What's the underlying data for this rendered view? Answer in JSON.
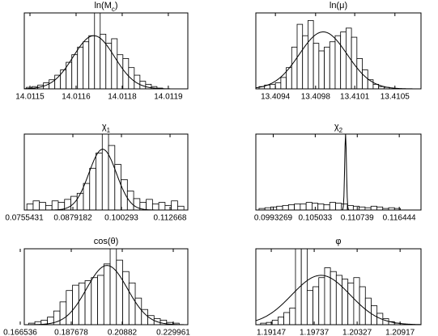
{
  "chart_data": [
    {
      "type": "histogram",
      "title": [
        "ln(M",
        "c",
        ")"
      ],
      "xlim": [
        14.011484,
        14.011945
      ],
      "ylim": [
        0,
        100
      ],
      "xticks": [
        {
          "value": 14.0115,
          "label": "14.0115"
        },
        {
          "value": 14.01163,
          "label": "14.0116"
        },
        {
          "value": 14.01176,
          "label": "14.0118"
        },
        {
          "value": 14.01189,
          "label": "14.0119"
        }
      ],
      "bins": [
        14.01149,
        14.011506,
        14.011522,
        14.011538,
        14.011554,
        14.01157,
        14.011586,
        14.011602,
        14.011618,
        14.011634,
        14.01165,
        14.011666,
        14.011682,
        14.011698,
        14.011714,
        14.01173,
        14.011746,
        14.011762,
        14.011778,
        14.011794,
        14.01181,
        14.011826,
        14.011842,
        14.011858,
        14.011874
      ],
      "counts": [
        2,
        3,
        5,
        8,
        12,
        18,
        25,
        35,
        45,
        55,
        62,
        70,
        100,
        72,
        60,
        66,
        45,
        40,
        28,
        18,
        10,
        6,
        3,
        1
      ],
      "fit": {
        "mean": 14.01168,
        "sigma": 5.8e-05,
        "peak": 70
      }
    },
    {
      "type": "histogram",
      "title": [
        "ln(μ)"
      ],
      "xlim": [
        13.40922,
        13.41074
      ],
      "ylim": [
        0,
        100
      ],
      "xticks": [
        13.4094,
        {
          "value": 13.40977,
          "label": "13.4098"
        },
        {
          "value": 13.41013,
          "label": "13.4101"
        },
        13.4105
      ],
      "bins": [
        13.40925,
        13.4093,
        13.40935,
        13.4094,
        13.40945,
        13.4095,
        13.40955,
        13.4096,
        13.40965,
        13.4097,
        13.40975,
        13.4098,
        13.40985,
        13.4099,
        13.40995,
        13.41,
        13.41005,
        13.4101,
        13.41015,
        13.4102,
        13.41025,
        13.4103,
        13.41035,
        13.4104,
        13.41045
      ],
      "counts": [
        3,
        5,
        6,
        8,
        15,
        28,
        55,
        85,
        70,
        90,
        60,
        50,
        55,
        62,
        70,
        75,
        80,
        68,
        40,
        25,
        12,
        6,
        3,
        2
      ],
      "fit": {
        "mean": 13.40984,
        "sigma": 0.00022,
        "peak": 75
      }
    },
    {
      "type": "histogram",
      "title": [
        "χ",
        "1"
      ],
      "xlim": [
        0.0755431,
        0.1172
      ],
      "ylim": [
        0,
        100
      ],
      "xticks": [
        0.0755431,
        0.0879182,
        0.100293,
        0.112668
      ],
      "bins": [
        0.0762,
        0.0778,
        0.0794,
        0.081,
        0.0826,
        0.0842,
        0.0858,
        0.0874,
        0.089,
        0.0906,
        0.0922,
        0.0938,
        0.0954,
        0.097,
        0.0986,
        0.1002,
        0.1018,
        0.1034,
        0.105,
        0.1066,
        0.1082,
        0.1098,
        0.1114,
        0.113,
        0.1146,
        0.1162
      ],
      "counts": [
        8,
        12,
        10,
        6,
        12,
        10,
        14,
        18,
        22,
        35,
        55,
        75,
        100,
        85,
        60,
        40,
        25,
        15,
        10,
        14,
        8,
        10,
        6,
        12,
        5
      ],
      "fit": {
        "mean": 0.0955,
        "sigma": 0.0035,
        "peak": 80
      }
    },
    {
      "type": "histogram",
      "title": [
        "χ",
        "2"
      ],
      "xlim": [
        0.096966,
        0.119396
      ],
      "ylim": [
        0,
        100
      ],
      "xticks": [
        0.0993269,
        0.105033,
        0.110739,
        0.116444
      ],
      "bins": [
        0.0974,
        0.0982,
        0.099,
        0.0998,
        0.1006,
        0.1014,
        0.1022,
        0.103,
        0.1038,
        0.1046,
        0.1054,
        0.1062,
        0.107,
        0.1078,
        0.1086,
        0.1094,
        0.1102,
        0.111,
        0.1118,
        0.1126,
        0.1134,
        0.1142,
        0.115,
        0.1158,
        0.1166
      ],
      "counts": [
        2,
        3,
        4,
        5,
        6,
        7,
        8,
        8,
        10,
        9,
        8,
        7,
        10,
        9,
        8,
        6,
        5,
        4,
        3,
        5,
        4,
        2,
        3,
        2
      ],
      "fit": {
        "mean": 0.10915,
        "sigma": 0.00012,
        "peak": 100
      }
    },
    {
      "type": "histogram",
      "title": [
        "cos(θ)"
      ],
      "xlim": [
        0.168214,
        0.236002
      ],
      "ylim": [
        0,
        100
      ],
      "xticks": [
        0.166536,
        0.187678,
        0.20882,
        0.229961
      ],
      "bins": [
        0.17,
        0.1726,
        0.1752,
        0.1778,
        0.1804,
        0.183,
        0.1856,
        0.1882,
        0.1908,
        0.1934,
        0.196,
        0.1986,
        0.2012,
        0.2038,
        0.2064,
        0.209,
        0.2116,
        0.2142,
        0.2168,
        0.2194,
        0.222,
        0.2246,
        0.2272,
        0.2298,
        0.2324
      ],
      "counts": [
        2,
        4,
        6,
        10,
        18,
        30,
        45,
        52,
        55,
        58,
        62,
        65,
        80,
        100,
        85,
        70,
        55,
        35,
        20,
        12,
        8,
        6,
        3,
        2
      ],
      "fit": {
        "mean": 0.2025,
        "sigma": 0.0085,
        "peak": 78
      }
    },
    {
      "type": "histogram",
      "title": [
        "φ"
      ],
      "xlim": [
        1.189352,
        1.212044
      ],
      "ylim": [
        0,
        100
      ],
      "xticks": [
        1.19147,
        1.19737,
        1.20327,
        1.20917
      ],
      "bins": [
        1.19,
        1.1908,
        1.1916,
        1.1924,
        1.1932,
        1.194,
        1.1948,
        1.1956,
        1.1964,
        1.1972,
        1.198,
        1.1988,
        1.1996,
        1.2004,
        1.2012,
        1.202,
        1.2028,
        1.2036,
        1.2044,
        1.2052,
        1.206,
        1.2068,
        1.2076,
        1.2084,
        1.2092
      ],
      "counts": [
        2,
        3,
        6,
        10,
        16,
        22,
        100,
        100,
        45,
        50,
        62,
        75,
        70,
        65,
        60,
        55,
        62,
        50,
        35,
        25,
        15,
        8,
        4,
        2
      ],
      "fit": {
        "mean": 1.1983,
        "sigma": 0.004,
        "peak": 65
      }
    }
  ]
}
